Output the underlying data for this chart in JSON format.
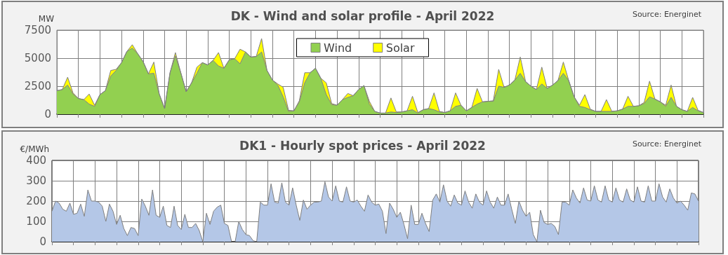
{
  "chart_data": [
    {
      "type": "area",
      "title": "DK - Wind and solar profile - April 2022",
      "ylabel": "MW",
      "annotations": [
        "Source: Energinet"
      ],
      "stacked": true,
      "grid": true,
      "legend": "top",
      "tick_labels": "y",
      "ylim": [
        0,
        7500
      ],
      "yticks": [
        0,
        2500,
        5000,
        7500
      ],
      "categories": [
        null,
        null,
        null,
        null,
        null,
        null,
        null,
        null,
        null,
        null,
        null,
        null,
        null,
        null,
        null,
        null,
        null,
        null,
        null,
        null,
        null,
        null,
        null,
        null,
        null,
        null,
        null,
        null,
        null,
        null,
        null,
        null,
        null,
        null,
        null,
        null,
        null,
        null,
        null,
        null,
        null,
        null,
        null,
        null,
        null,
        null,
        null,
        null,
        null,
        null,
        null,
        null,
        null,
        null,
        null,
        null,
        null,
        null,
        null,
        null,
        null,
        null,
        null,
        null,
        null,
        null,
        null,
        null,
        null,
        null,
        null,
        null,
        null,
        null,
        null,
        null,
        null,
        null,
        null,
        null,
        null,
        null,
        null,
        null,
        null,
        null,
        null,
        null,
        null,
        null,
        null,
        null,
        null,
        null,
        null,
        null,
        null,
        null,
        null,
        null,
        null,
        null,
        null,
        null,
        null,
        null,
        null,
        null,
        null,
        null,
        null,
        null,
        null,
        null,
        null,
        null,
        null,
        null,
        null,
        null,
        null
      ],
      "series": [
        {
          "name": "Wind",
          "color": "#92d050",
          "values": [
            2100,
            2200,
            2600,
            1800,
            1400,
            1300,
            900,
            700,
            1750,
            2100,
            3400,
            3900,
            4600,
            5600,
            5900,
            5400,
            4700,
            3600,
            3650,
            1800,
            500,
            3700,
            5200,
            3700,
            2000,
            2800,
            3650,
            4600,
            4400,
            4800,
            4300,
            4100,
            4850,
            4950,
            4500,
            5550,
            5100,
            5150,
            5550,
            3900,
            3050,
            2600,
            1550,
            250,
            300,
            1100,
            2800,
            3700,
            4100,
            3200,
            1750,
            850,
            800,
            1300,
            1500,
            1650,
            2200,
            2550,
            900,
            250,
            100,
            100,
            200,
            150,
            200,
            300,
            400,
            100,
            400,
            500,
            400,
            200,
            150,
            300,
            700,
            800,
            300,
            600,
            900,
            1100,
            1150,
            1150,
            2500,
            2400,
            2600,
            3050,
            3650,
            2900,
            2500,
            2200,
            2700,
            2300,
            2600,
            3000,
            3650,
            3000,
            1550,
            700,
            600,
            400,
            250,
            250,
            250,
            250,
            300,
            450,
            700,
            700,
            750,
            950,
            1550,
            1350,
            1100,
            700,
            1500,
            700,
            400,
            250,
            600,
            300,
            150
          ]
        },
        {
          "name": "Solar",
          "color": "#ffff00",
          "values": [
            0,
            0,
            700,
            100,
            0,
            0,
            900,
            100,
            0,
            0,
            500,
            100,
            0,
            0,
            300,
            0,
            0,
            0,
            1000,
            0,
            0,
            0,
            300,
            0,
            0,
            0,
            550,
            0,
            0,
            0,
            1200,
            0,
            0,
            0,
            1300,
            0,
            0,
            0,
            1200,
            0,
            0,
            100,
            850,
            100,
            0,
            100,
            900,
            0,
            0,
            0,
            1050,
            100,
            0,
            0,
            350,
            0,
            0,
            0,
            250,
            0,
            0,
            0,
            1250,
            50,
            0,
            0,
            1200,
            50,
            0,
            0,
            1500,
            50,
            0,
            0,
            1200,
            0,
            0,
            0,
            1400,
            0,
            0,
            50,
            1500,
            0,
            0,
            0,
            1450,
            0,
            0,
            0,
            1500,
            0,
            0,
            0,
            1000,
            0,
            0,
            100,
            1150,
            50,
            0,
            0,
            1050,
            0,
            0,
            0,
            900,
            0,
            0,
            100,
            1400,
            0,
            0,
            100,
            1100,
            0,
            0,
            0,
            900,
            50,
            0
          ]
        }
      ]
    },
    {
      "type": "area",
      "title": "DK1 - Hourly spot prices - April 2022",
      "ylabel": "€/MWh",
      "annotations": [
        "Source: Energinet"
      ],
      "grid": true,
      "tick_labels": "y",
      "ylim": [
        0,
        400
      ],
      "yticks": [
        0,
        100,
        200,
        300,
        400
      ],
      "categories": [
        null,
        null,
        null,
        null,
        null,
        null,
        null,
        null,
        null,
        null,
        null,
        null,
        null,
        null,
        null,
        null,
        null,
        null,
        null,
        null,
        null,
        null,
        null,
        null,
        null,
        null,
        null,
        null,
        null,
        null,
        null,
        null,
        null,
        null,
        null,
        null,
        null,
        null,
        null,
        null,
        null,
        null,
        null,
        null,
        null,
        null,
        null,
        null,
        null,
        null,
        null,
        null,
        null,
        null,
        null,
        null,
        null,
        null,
        null,
        null,
        null,
        null,
        null,
        null,
        null,
        null,
        null,
        null,
        null,
        null,
        null,
        null,
        null,
        null,
        null,
        null,
        null,
        null,
        null,
        null,
        null,
        null,
        null,
        null,
        null,
        null,
        null,
        null,
        null,
        null,
        null,
        null,
        null,
        null,
        null,
        null,
        null,
        null,
        null,
        null,
        null,
        null,
        null,
        null,
        null,
        null,
        null,
        null,
        null,
        null,
        null,
        null,
        null,
        null,
        null,
        null,
        null,
        null,
        null,
        null,
        null,
        null,
        null,
        null,
        null,
        null,
        null,
        null,
        null,
        null,
        null,
        null,
        null,
        null,
        null,
        null,
        null,
        null,
        null,
        null,
        null,
        null,
        null,
        null,
        null,
        null,
        null,
        null,
        null,
        null,
        null,
        null,
        null,
        null,
        null,
        null,
        null,
        null,
        null,
        null,
        null,
        null,
        null,
        null,
        null,
        null,
        null,
        null,
        null,
        null,
        null,
        null,
        null,
        null,
        null,
        null,
        null,
        null,
        null,
        null,
        null
      ],
      "series": [
        {
          "color": "#b4c7e7",
          "values": [
            150,
            200,
            190,
            160,
            150,
            190,
            135,
            140,
            185,
            125,
            255,
            200,
            200,
            195,
            175,
            100,
            185,
            150,
            85,
            130,
            65,
            30,
            70,
            65,
            30,
            210,
            175,
            130,
            255,
            130,
            120,
            175,
            80,
            70,
            175,
            80,
            60,
            135,
            70,
            70,
            90,
            55,
            0,
            140,
            85,
            150,
            170,
            180,
            90,
            80,
            0,
            0,
            100,
            60,
            35,
            30,
            5,
            0,
            195,
            180,
            180,
            285,
            195,
            190,
            290,
            195,
            180,
            265,
            180,
            105,
            205,
            160,
            180,
            195,
            195,
            200,
            295,
            220,
            200,
            275,
            200,
            195,
            270,
            200,
            195,
            205,
            175,
            150,
            230,
            195,
            180,
            185,
            150,
            40,
            190,
            160,
            120,
            145,
            85,
            15,
            180,
            85,
            85,
            140,
            90,
            50,
            205,
            235,
            195,
            280,
            200,
            175,
            230,
            190,
            180,
            250,
            195,
            165,
            235,
            195,
            180,
            250,
            195,
            165,
            220,
            180,
            180,
            235,
            160,
            90,
            200,
            155,
            125,
            145,
            35,
            0,
            155,
            95,
            85,
            90,
            75,
            35,
            195,
            195,
            180,
            255,
            215,
            190,
            265,
            205,
            200,
            275,
            205,
            195,
            275,
            205,
            195,
            265,
            205,
            195,
            260,
            205,
            195,
            270,
            200,
            195,
            275,
            200,
            200,
            285,
            220,
            195,
            260,
            215,
            190,
            200,
            180,
            155,
            240,
            235,
            200
          ]
        }
      ]
    }
  ]
}
